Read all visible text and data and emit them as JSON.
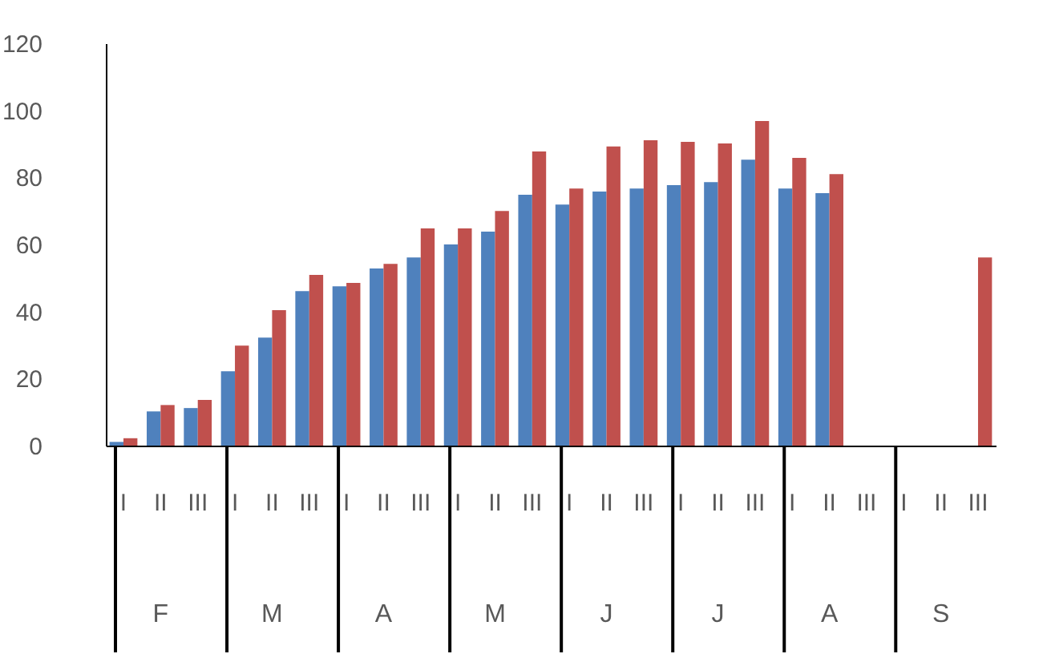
{
  "chart_data": {
    "type": "bar",
    "categories": [
      "I",
      "II",
      "III",
      "I",
      "II",
      "III",
      "I",
      "II",
      "III",
      "I",
      "II",
      "III",
      "I",
      "II",
      "III",
      "I",
      "II",
      "III",
      "I",
      "II",
      "III",
      "I",
      "II",
      "III"
    ],
    "series": [
      {
        "color": "#4f81bd",
        "values": [
          1.1,
          10.2,
          11.2,
          22.2,
          32.2,
          46.1,
          47.5,
          52.8,
          56.1,
          60,
          63.8,
          74.8,
          71.9,
          75.8,
          76.7,
          77.7,
          78.6,
          85.3,
          76.7,
          75.3,
          null,
          null,
          null,
          null
        ]
      },
      {
        "color": "#c0504d",
        "values": [
          2.2,
          12.1,
          13.6,
          29.8,
          40.4,
          50.9,
          48.5,
          54.2,
          64.8,
          64.8,
          70.0,
          87.7,
          76.7,
          89.2,
          91.1,
          90.6,
          90.1,
          96.8,
          85.8,
          81.0,
          null,
          null,
          null,
          56.1
        ]
      }
    ],
    "annotations": [
      "F",
      "M",
      "A",
      "M",
      "J",
      "J",
      "A",
      "S"
    ],
    "ylim": [
      0,
      120
    ],
    "yticks": [
      0,
      20,
      40,
      60,
      80,
      100,
      120
    ],
    "grid": false,
    "legend": false
  }
}
